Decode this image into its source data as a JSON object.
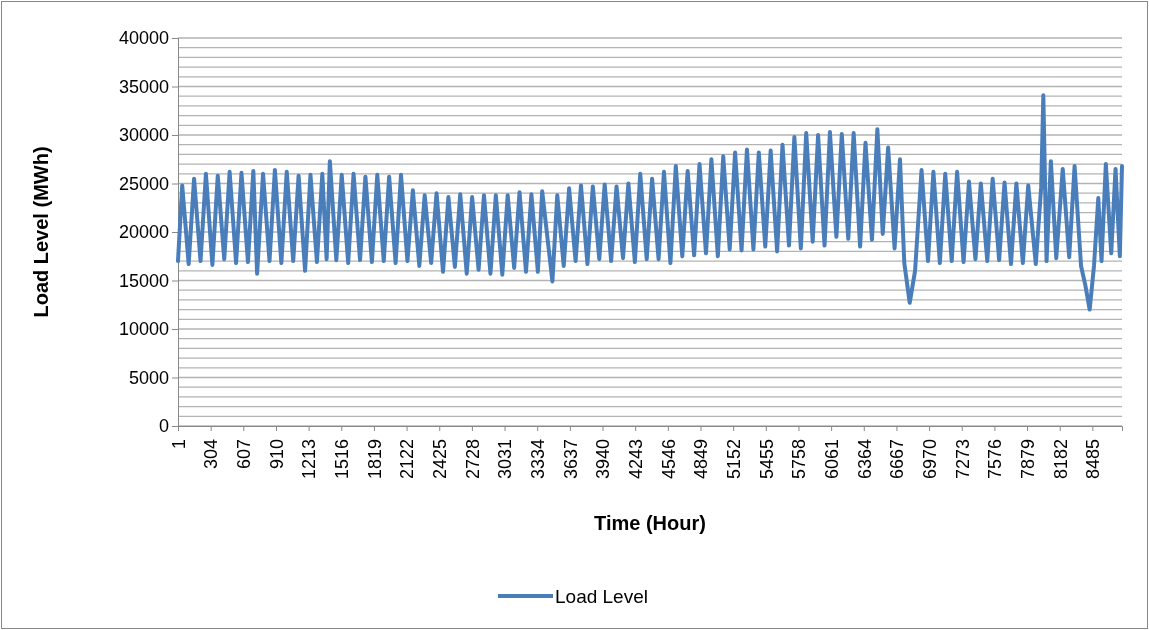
{
  "chart_data": {
    "type": "line",
    "xlabel": "Time (Hour)",
    "ylabel": "Load Level (MWh)",
    "xlim": [
      1,
      8760
    ],
    "xticks": [
      1,
      304,
      607,
      910,
      1213,
      1516,
      1819,
      2122,
      2425,
      2728,
      3031,
      3334,
      3637,
      3940,
      4243,
      4546,
      4849,
      5152,
      5455,
      5758,
      6061,
      6364,
      6667,
      6970,
      7273,
      7576,
      7879,
      8182,
      8485
    ],
    "ylim": [
      0,
      40000
    ],
    "yticks": [
      0,
      {
        "value": 1000,
        "label": null
      },
      {
        "value": 2000,
        "label": null
      },
      {
        "value": 3000,
        "label": null
      },
      {
        "value": 4000,
        "label": null
      },
      5000,
      {
        "value": 6000,
        "label": null
      },
      {
        "value": 7000,
        "label": null
      },
      {
        "value": 8000,
        "label": null
      },
      {
        "value": 9000,
        "label": null
      },
      10000,
      {
        "value": 11000,
        "label": null
      },
      {
        "value": 12000,
        "label": null
      },
      {
        "value": 13000,
        "label": null
      },
      {
        "value": 14000,
        "label": null
      },
      15000,
      {
        "value": 16000,
        "label": null
      },
      {
        "value": 17000,
        "label": null
      },
      {
        "value": 18000,
        "label": null
      },
      {
        "value": 19000,
        "label": null
      },
      20000,
      {
        "value": 21000,
        "label": null
      },
      {
        "value": 22000,
        "label": null
      },
      {
        "value": 23000,
        "label": null
      },
      {
        "value": 24000,
        "label": null
      },
      25000,
      {
        "value": 26000,
        "label": null
      },
      {
        "value": 27000,
        "label": null
      },
      {
        "value": 28000,
        "label": null
      },
      {
        "value": 29000,
        "label": null
      },
      30000,
      {
        "value": 31000,
        "label": null
      },
      {
        "value": 32000,
        "label": null
      },
      {
        "value": 33000,
        "label": null
      },
      {
        "value": 34000,
        "label": null
      },
      35000,
      {
        "value": 36000,
        "label": null
      },
      {
        "value": 37000,
        "label": null
      },
      {
        "value": 38000,
        "label": null
      },
      {
        "value": 39000,
        "label": null
      },
      40000
    ],
    "grid": "y",
    "legend": "bottom",
    "marker": "none",
    "line_style": "solid",
    "x": [
      1,
      40,
      100,
      150,
      210,
      260,
      320,
      370,
      430,
      480,
      540,
      590,
      650,
      700,
      735,
      790,
      850,
      900,
      960,
      1010,
      1070,
      1120,
      1180,
      1230,
      1290,
      1340,
      1380,
      1410,
      1470,
      1520,
      1580,
      1630,
      1690,
      1740,
      1800,
      1850,
      1910,
      1960,
      2020,
      2070,
      2130,
      2180,
      2240,
      2290,
      2350,
      2400,
      2460,
      2510,
      2570,
      2620,
      2680,
      2730,
      2790,
      2840,
      2900,
      2950,
      3010,
      3060,
      3120,
      3170,
      3230,
      3280,
      3340,
      3380,
      3475,
      3520,
      3580,
      3630,
      3690,
      3740,
      3800,
      3850,
      3910,
      3960,
      4020,
      4070,
      4130,
      4180,
      4240,
      4290,
      4350,
      4400,
      4460,
      4510,
      4570,
      4620,
      4680,
      4730,
      4790,
      4840,
      4900,
      4950,
      5010,
      5060,
      5120,
      5170,
      5230,
      5280,
      5340,
      5390,
      5450,
      5500,
      5560,
      5610,
      5670,
      5720,
      5780,
      5830,
      5890,
      5940,
      6000,
      6050,
      6110,
      6160,
      6220,
      6270,
      6330,
      6380,
      6440,
      6490,
      6540,
      6590,
      6650,
      6700,
      6740,
      6790,
      6840,
      6900,
      6960,
      7010,
      7070,
      7120,
      7180,
      7230,
      7290,
      7340,
      7400,
      7450,
      7510,
      7560,
      7620,
      7670,
      7730,
      7780,
      7840,
      7890,
      7960,
      8010,
      8030,
      8060,
      8100,
      8150,
      8210,
      8270,
      8320,
      8380,
      8420,
      8460,
      8500,
      8540,
      8570,
      8610,
      8660,
      8700,
      8740,
      8760
    ],
    "series": [
      {
        "name": "Load Level",
        "color": "#4a7ebb",
        "values": [
          17000,
          24800,
          16700,
          25500,
          17000,
          26000,
          16600,
          25800,
          17200,
          26200,
          16800,
          26100,
          16900,
          26300,
          15700,
          26000,
          17000,
          26400,
          16800,
          26200,
          17000,
          25800,
          16000,
          25900,
          16900,
          26000,
          17200,
          27300,
          17100,
          25900,
          16800,
          26000,
          17100,
          25700,
          16900,
          25900,
          17000,
          25700,
          16800,
          25900,
          17000,
          24300,
          16500,
          23800,
          16800,
          24000,
          15900,
          23600,
          16400,
          23900,
          15700,
          23600,
          16100,
          23800,
          15700,
          23800,
          15600,
          23800,
          16300,
          24100,
          15900,
          23900,
          15900,
          24200,
          14900,
          23800,
          16500,
          24500,
          17000,
          24800,
          16700,
          24700,
          17200,
          24900,
          17000,
          24700,
          17300,
          25000,
          16900,
          26000,
          17200,
          25500,
          17200,
          26200,
          16800,
          26800,
          17500,
          26300,
          17600,
          27000,
          17800,
          27500,
          17500,
          27800,
          18200,
          28200,
          18100,
          28500,
          18200,
          28200,
          18500,
          28400,
          18000,
          29000,
          18600,
          29800,
          18300,
          30200,
          19000,
          30000,
          18600,
          30300,
          19500,
          30100,
          19300,
          30200,
          18500,
          29200,
          19200,
          30600,
          19800,
          28700,
          18300,
          27500,
          16800,
          12700,
          16000,
          26400,
          17000,
          26200,
          16800,
          26000,
          17000,
          26200,
          16900,
          25200,
          17200,
          25000,
          17000,
          25500,
          17100,
          25100,
          16700,
          25000,
          16800,
          24800,
          16700,
          24600,
          34100,
          17000,
          27300,
          17300,
          26500,
          17400,
          26800,
          16500,
          14500,
          12000,
          16500,
          23500,
          17000,
          27000,
          17800,
          26500,
          17500,
          26800
        ]
      }
    ]
  }
}
